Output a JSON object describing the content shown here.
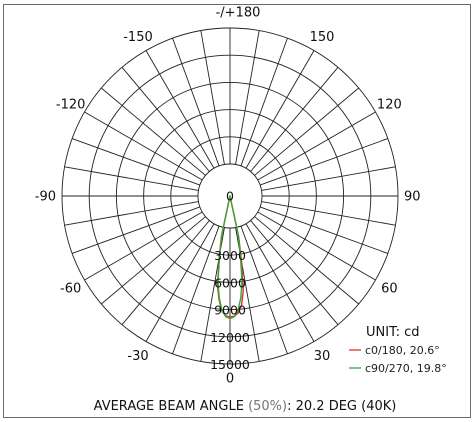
{
  "chart_data": {
    "type": "polar",
    "angle_labels": [
      {
        "angle": 180,
        "text": "-/+180"
      },
      {
        "angle": -150,
        "text": "-150"
      },
      {
        "angle": 150,
        "text": "150"
      },
      {
        "angle": -120,
        "text": "-120"
      },
      {
        "angle": 120,
        "text": "120"
      },
      {
        "angle": -90,
        "text": "-90"
      },
      {
        "angle": 90,
        "text": "90"
      },
      {
        "angle": -60,
        "text": "-60"
      },
      {
        "angle": 60,
        "text": "60"
      },
      {
        "angle": -30,
        "text": "-30"
      },
      {
        "angle": 30,
        "text": "30"
      },
      {
        "angle": 0,
        "text": "0"
      }
    ],
    "radial_ticks": [
      0,
      3000,
      6000,
      9000,
      12000,
      15000
    ],
    "radial_max": 15000,
    "unit": "UNIT: cd",
    "series": [
      {
        "name": "c0/180, 20.6°",
        "color": "#d9332b",
        "angles": [
          -15,
          -12,
          -10,
          -8,
          -6,
          -4,
          -2,
          0,
          2,
          4,
          6,
          8,
          10,
          12,
          15
        ],
        "values": [
          0,
          1000,
          3300,
          6400,
          8000,
          9200,
          9700,
          9800,
          9750,
          9400,
          8600,
          7000,
          3800,
          1100,
          0
        ]
      },
      {
        "name": "c90/270, 19.8°",
        "color": "#3aa536",
        "angles": [
          -15,
          -12,
          -10,
          -8,
          -6,
          -4,
          -2,
          0,
          2,
          4,
          6,
          8,
          10,
          12,
          15
        ],
        "values": [
          0,
          900,
          3000,
          6000,
          7800,
          9100,
          9800,
          10000,
          9800,
          9100,
          7800,
          6000,
          3000,
          900,
          0
        ]
      }
    ],
    "footer": {
      "main": "AVERAGE BEAM ANGLE ",
      "grey": "(50%)",
      "rest": ": 20.2 DEG (40K)"
    }
  }
}
